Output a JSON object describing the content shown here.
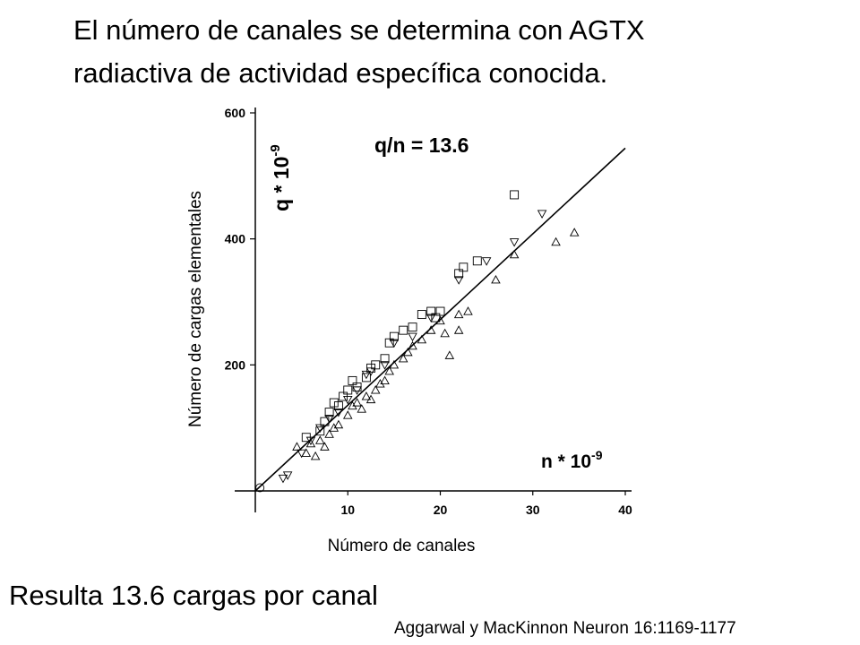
{
  "heading": {
    "line1": "El número de canales se determina con AGTX",
    "line2": "radiactiva de actividad específica conocida."
  },
  "conclusion": "Resulta 13.6 cargas por canal",
  "citation": "Aggarwal y MacKinnon Neuron 16:1169-1177",
  "chart_data": {
    "type": "scatter",
    "xlabel": "Número de canales",
    "ylabel": "Número de cargas elementales",
    "xlim": [
      0,
      40
    ],
    "ylim": [
      0,
      600
    ],
    "x_ticks": [
      10,
      20,
      30,
      40
    ],
    "y_ticks": [
      200,
      400,
      600
    ],
    "grid": false,
    "annotations": {
      "slope": "q/n = 13.6",
      "y_axis_title": "q * 10",
      "y_axis_exp": "-9",
      "x_axis_title": "n * 10",
      "x_axis_exp": "-9"
    },
    "fit_line": {
      "slope": 13.6,
      "x": [
        0,
        40
      ]
    },
    "series": [
      {
        "marker": "square",
        "points": [
          [
            5.5,
            85
          ],
          [
            7,
            95
          ],
          [
            7.5,
            110
          ],
          [
            8,
            125
          ],
          [
            8.5,
            140
          ],
          [
            9,
            135
          ],
          [
            9.5,
            150
          ],
          [
            10,
            160
          ],
          [
            10.5,
            175
          ],
          [
            11,
            165
          ],
          [
            12,
            180
          ],
          [
            12.5,
            195
          ],
          [
            13,
            200
          ],
          [
            14,
            210
          ],
          [
            14.5,
            235
          ],
          [
            15,
            245
          ],
          [
            16,
            255
          ],
          [
            17,
            260
          ],
          [
            18,
            280
          ],
          [
            19,
            285
          ],
          [
            19.5,
            275
          ],
          [
            20,
            285
          ],
          [
            22,
            345
          ],
          [
            22.5,
            355
          ],
          [
            24,
            365
          ],
          [
            28,
            470
          ]
        ]
      },
      {
        "marker": "triangle-up",
        "points": [
          [
            4.5,
            70
          ],
          [
            5.5,
            60
          ],
          [
            6,
            75
          ],
          [
            6.5,
            55
          ],
          [
            7,
            80
          ],
          [
            7.5,
            70
          ],
          [
            8,
            90
          ],
          [
            8.5,
            100
          ],
          [
            9,
            105
          ],
          [
            10,
            120
          ],
          [
            10.5,
            135
          ],
          [
            11,
            140
          ],
          [
            11.5,
            130
          ],
          [
            12,
            150
          ],
          [
            12.5,
            145
          ],
          [
            13,
            160
          ],
          [
            13.5,
            170
          ],
          [
            14,
            175
          ],
          [
            14.5,
            190
          ],
          [
            15,
            200
          ],
          [
            16,
            210
          ],
          [
            16.5,
            220
          ],
          [
            17,
            230
          ],
          [
            18,
            240
          ],
          [
            19,
            255
          ],
          [
            20,
            270
          ],
          [
            20.5,
            250
          ],
          [
            21,
            215
          ],
          [
            22,
            255
          ],
          [
            22,
            280
          ],
          [
            23,
            285
          ],
          [
            26,
            335
          ],
          [
            28,
            375
          ],
          [
            32.5,
            395
          ],
          [
            34.5,
            410
          ]
        ]
      },
      {
        "marker": "triangle-down",
        "points": [
          [
            3,
            20
          ],
          [
            3.5,
            25
          ],
          [
            5,
            60
          ],
          [
            6,
            80
          ],
          [
            7,
            100
          ],
          [
            8,
            115
          ],
          [
            9,
            125
          ],
          [
            10,
            145
          ],
          [
            11,
            160
          ],
          [
            12,
            185
          ],
          [
            12.5,
            190
          ],
          [
            14,
            200
          ],
          [
            15,
            235
          ],
          [
            17,
            245
          ],
          [
            19,
            275
          ],
          [
            22,
            335
          ],
          [
            25,
            365
          ],
          [
            28,
            395
          ],
          [
            31,
            440
          ]
        ]
      },
      {
        "marker": "circle",
        "points": [
          [
            0.5,
            5
          ]
        ]
      }
    ]
  }
}
